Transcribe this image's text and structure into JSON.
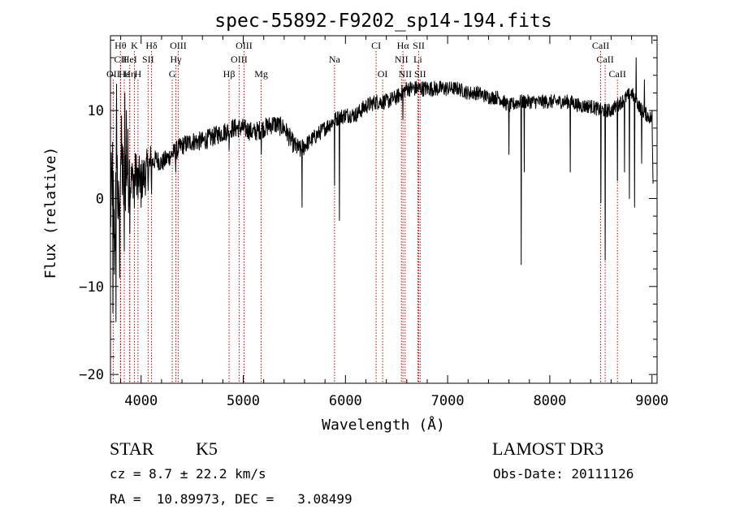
{
  "chart_data": {
    "type": "line",
    "title": "spec-55892-F9202_sp14-194.fits",
    "xlabel": "Wavelength (Å)",
    "ylabel": "Flux (relative)",
    "xlim": [
      3700,
      9050
    ],
    "ylim": [
      -21,
      18.5
    ],
    "x_ticks": [
      4000,
      5000,
      6000,
      7000,
      8000,
      9000
    ],
    "x_tick_labels": [
      "4000",
      "5000",
      "6000",
      "7000",
      "8000",
      "9000"
    ],
    "y_ticks": [
      -20,
      -10,
      0,
      10
    ],
    "y_tick_labels": [
      "−20",
      "−10",
      "0",
      "10"
    ],
    "grid": false,
    "series": [
      {
        "style": "noisy-spectrum",
        "anchors": [
          [
            3700,
            -2
          ],
          [
            3720,
            3
          ],
          [
            3740,
            -6
          ],
          [
            3760,
            5
          ],
          [
            3780,
            -3
          ],
          [
            3800,
            6
          ],
          [
            3830,
            1
          ],
          [
            3860,
            4
          ],
          [
            3900,
            2
          ],
          [
            3950,
            3
          ],
          [
            4000,
            2
          ],
          [
            4050,
            3
          ],
          [
            4100,
            4
          ],
          [
            4150,
            4.5
          ],
          [
            4200,
            4
          ],
          [
            4300,
            5
          ],
          [
            4400,
            6
          ],
          [
            4500,
            6.5
          ],
          [
            4600,
            6.5
          ],
          [
            4700,
            7
          ],
          [
            4800,
            7.5
          ],
          [
            4900,
            8
          ],
          [
            5000,
            8
          ],
          [
            5100,
            7.5
          ],
          [
            5200,
            8
          ],
          [
            5300,
            8.5
          ],
          [
            5400,
            8
          ],
          [
            5500,
            6
          ],
          [
            5560,
            5.5
          ],
          [
            5600,
            6
          ],
          [
            5700,
            7
          ],
          [
            5800,
            8
          ],
          [
            5900,
            9
          ],
          [
            6000,
            9.5
          ],
          [
            6100,
            9.5
          ],
          [
            6200,
            10.5
          ],
          [
            6300,
            11
          ],
          [
            6400,
            11
          ],
          [
            6500,
            11.5
          ],
          [
            6600,
            12.5
          ],
          [
            6700,
            12.5
          ],
          [
            6800,
            12.5
          ],
          [
            6900,
            12.5
          ],
          [
            7000,
            12.5
          ],
          [
            7100,
            12.5
          ],
          [
            7200,
            12
          ],
          [
            7300,
            12
          ],
          [
            7400,
            11.5
          ],
          [
            7500,
            11.5
          ],
          [
            7600,
            10.5
          ],
          [
            7700,
            11
          ],
          [
            7800,
            11
          ],
          [
            7900,
            11
          ],
          [
            8000,
            11
          ],
          [
            8100,
            11
          ],
          [
            8200,
            11
          ],
          [
            8300,
            10.5
          ],
          [
            8400,
            10.5
          ],
          [
            8500,
            10
          ],
          [
            8600,
            10
          ],
          [
            8700,
            11
          ],
          [
            8800,
            12
          ],
          [
            8900,
            10
          ],
          [
            9000,
            9
          ],
          [
            9010,
            2
          ]
        ],
        "dips": [
          [
            3725,
            -13
          ],
          [
            3755,
            -14
          ],
          [
            3790,
            -9
          ],
          [
            3835,
            -6
          ],
          [
            3890,
            -4
          ],
          [
            3935,
            -1
          ],
          [
            3970,
            0
          ],
          [
            4000,
            -1
          ],
          [
            4102,
            0.5
          ],
          [
            4340,
            3
          ],
          [
            4862,
            5.5
          ],
          [
            5175,
            5
          ],
          [
            5575,
            -1
          ],
          [
            5892,
            1.5
          ],
          [
            5940,
            -2.5
          ],
          [
            6563,
            9
          ],
          [
            7600,
            5
          ],
          [
            7720,
            -7.5
          ],
          [
            7750,
            3
          ],
          [
            8200,
            3
          ],
          [
            8500,
            -0.5
          ],
          [
            8542,
            -7
          ],
          [
            8662,
            2
          ],
          [
            8730,
            3
          ],
          [
            8780,
            0
          ],
          [
            8830,
            -1
          ],
          [
            8900,
            4
          ]
        ],
        "spikes": [
          [
            3760,
            13
          ],
          [
            3840,
            12
          ],
          [
            3855,
            10
          ],
          [
            8845,
            16
          ],
          [
            8925,
            13.5
          ],
          [
            9000,
            10
          ]
        ]
      }
    ],
    "annotations": [
      {
        "label": "Hθ",
        "x": 3798,
        "row": 1
      },
      {
        "label": "K",
        "x": 3934,
        "row": 1
      },
      {
        "label": "Hδ",
        "x": 4102,
        "row": 1
      },
      {
        "label": "OIII",
        "x": 4363,
        "row": 1
      },
      {
        "label": "OIII",
        "x": 5007,
        "row": 1
      },
      {
        "label": "CI",
        "x": 6300,
        "row": 1
      },
      {
        "label": "Hα",
        "x": 6563,
        "row": 1
      },
      {
        "label": "SII",
        "x": 6717,
        "row": 1
      },
      {
        "label": "CaII",
        "x": 8498,
        "row": 1
      },
      {
        "label": "CII",
        "x": 3799,
        "row": 2
      },
      {
        "label": "HeI",
        "x": 3889,
        "row": 2
      },
      {
        "label": "SII",
        "x": 4068,
        "row": 2
      },
      {
        "label": "Hγ",
        "x": 4340,
        "row": 2
      },
      {
        "label": "OIII",
        "x": 4959,
        "row": 2
      },
      {
        "label": "Na",
        "x": 5893,
        "row": 2
      },
      {
        "label": "NII",
        "x": 6548,
        "row": 2
      },
      {
        "label": "Li",
        "x": 6708,
        "row": 2
      },
      {
        "label": "CaII",
        "x": 8542,
        "row": 2
      },
      {
        "label": "OII",
        "x": 3727,
        "row": 3
      },
      {
        "label": "Hε",
        "x": 3835,
        "row": 3
      },
      {
        "label": "Hη",
        "x": 3889,
        "row": 3
      },
      {
        "label": "H",
        "x": 3969,
        "row": 3
      },
      {
        "label": "G",
        "x": 4305,
        "row": 3
      },
      {
        "label": "Hβ",
        "x": 4861,
        "row": 3
      },
      {
        "label": "Mg",
        "x": 5175,
        "row": 3
      },
      {
        "label": "OI",
        "x": 6364,
        "row": 3
      },
      {
        "label": "NII",
        "x": 6584,
        "row": 3
      },
      {
        "label": "SII",
        "x": 6731,
        "row": 3
      },
      {
        "label": "CaII",
        "x": 8662,
        "row": 3
      }
    ],
    "colors": {
      "spectrum": "#000000",
      "line_markers": "#cc0000",
      "axes": "#000000"
    }
  },
  "footer": {
    "class_label": "STAR",
    "subclass_label": "K5",
    "survey": "LAMOST DR3",
    "cz": "cz = 8.7 ± 22.2 km/s",
    "obs_date": "Obs-Date: 20111126",
    "coords": "RA =  10.89973, DEC =   3.08499"
  }
}
